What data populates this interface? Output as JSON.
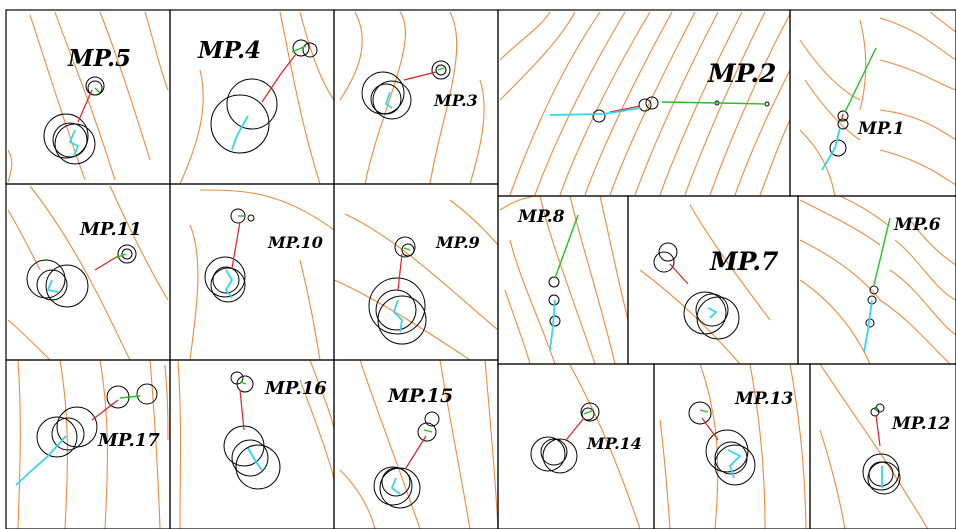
{
  "figure": {
    "panels": [
      {
        "id": "mp5",
        "label": "MP.5"
      },
      {
        "id": "mp4",
        "label": "MP.4"
      },
      {
        "id": "mp3",
        "label": "MP.3"
      },
      {
        "id": "mp2",
        "label": "MP.2"
      },
      {
        "id": "mp1",
        "label": "MP.1"
      },
      {
        "id": "mp11",
        "label": "MP.11"
      },
      {
        "id": "mp10",
        "label": "MP.10"
      },
      {
        "id": "mp9",
        "label": "MP.9"
      },
      {
        "id": "mp8",
        "label": "MP.8"
      },
      {
        "id": "mp7",
        "label": "MP.7"
      },
      {
        "id": "mp6",
        "label": "MP.6"
      },
      {
        "id": "mp17",
        "label": "MP.17"
      },
      {
        "id": "mp16",
        "label": "MP.16"
      },
      {
        "id": "mp15",
        "label": "MP.15"
      },
      {
        "id": "mp14",
        "label": "MP.14"
      },
      {
        "id": "mp13",
        "label": "MP.13"
      },
      {
        "id": "mp12",
        "label": "MP.12"
      }
    ]
  },
  "colors": {
    "contour": "#f08a3c",
    "ring": "#000000",
    "red_segment": "#e02020",
    "green_segment": "#22c022",
    "cyan_segment": "#33d6f0"
  }
}
